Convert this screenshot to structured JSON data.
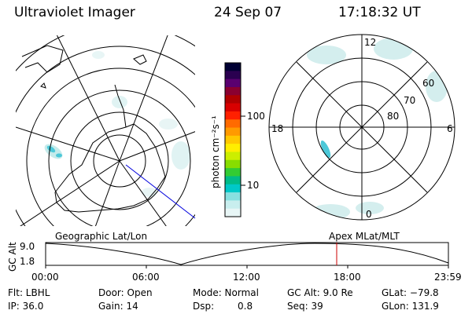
{
  "header": {
    "title": "Ultraviolet Imager",
    "date": "24 Sep 07",
    "time": "17:18:32 UT"
  },
  "colorbar": {
    "unit_label": "photon cm⁻²s⁻¹",
    "tick_labels": [
      "100",
      "10"
    ],
    "colors": [
      "#000033",
      "#2a0050",
      "#5a0070",
      "#8a0030",
      "#b00000",
      "#d80000",
      "#ff2000",
      "#ff6a00",
      "#ff9a00",
      "#ffc800",
      "#ffee00",
      "#ccee00",
      "#88dd00",
      "#33cc33",
      "#00bb88",
      "#00c8c8",
      "#88e0e0",
      "#c8eeee",
      "#e8f6f6"
    ]
  },
  "apex_plot": {
    "mlt_labels": [
      "12",
      "18",
      "6",
      "0"
    ],
    "mlat_labels": [
      "60",
      "70",
      "80"
    ]
  },
  "altitude_panel": {
    "ylabel": "GC Alt",
    "ytick_labels": [
      "9.0",
      "1.8"
    ],
    "left_caption": "Geographic Lat/Lon",
    "right_caption": "Apex MLat/MLT",
    "xtick_labels": [
      "00:00",
      "06:00",
      "12:00",
      "18:00",
      "23:59"
    ],
    "marker_color": "#cc0000"
  },
  "status": {
    "filter": "Flt: LBHL",
    "door": "Door: Open",
    "mode": "Mode: Normal",
    "gc_alt": "GC Alt: 9.0 Re",
    "glat": "GLat: −79.8",
    "ip": "IP: 36.0",
    "gain": "Gain: 14",
    "dsp_label": "Dsp:",
    "dsp_value": "0.8",
    "seq": "Seq: 39",
    "glon": "GLon: 131.9"
  }
}
